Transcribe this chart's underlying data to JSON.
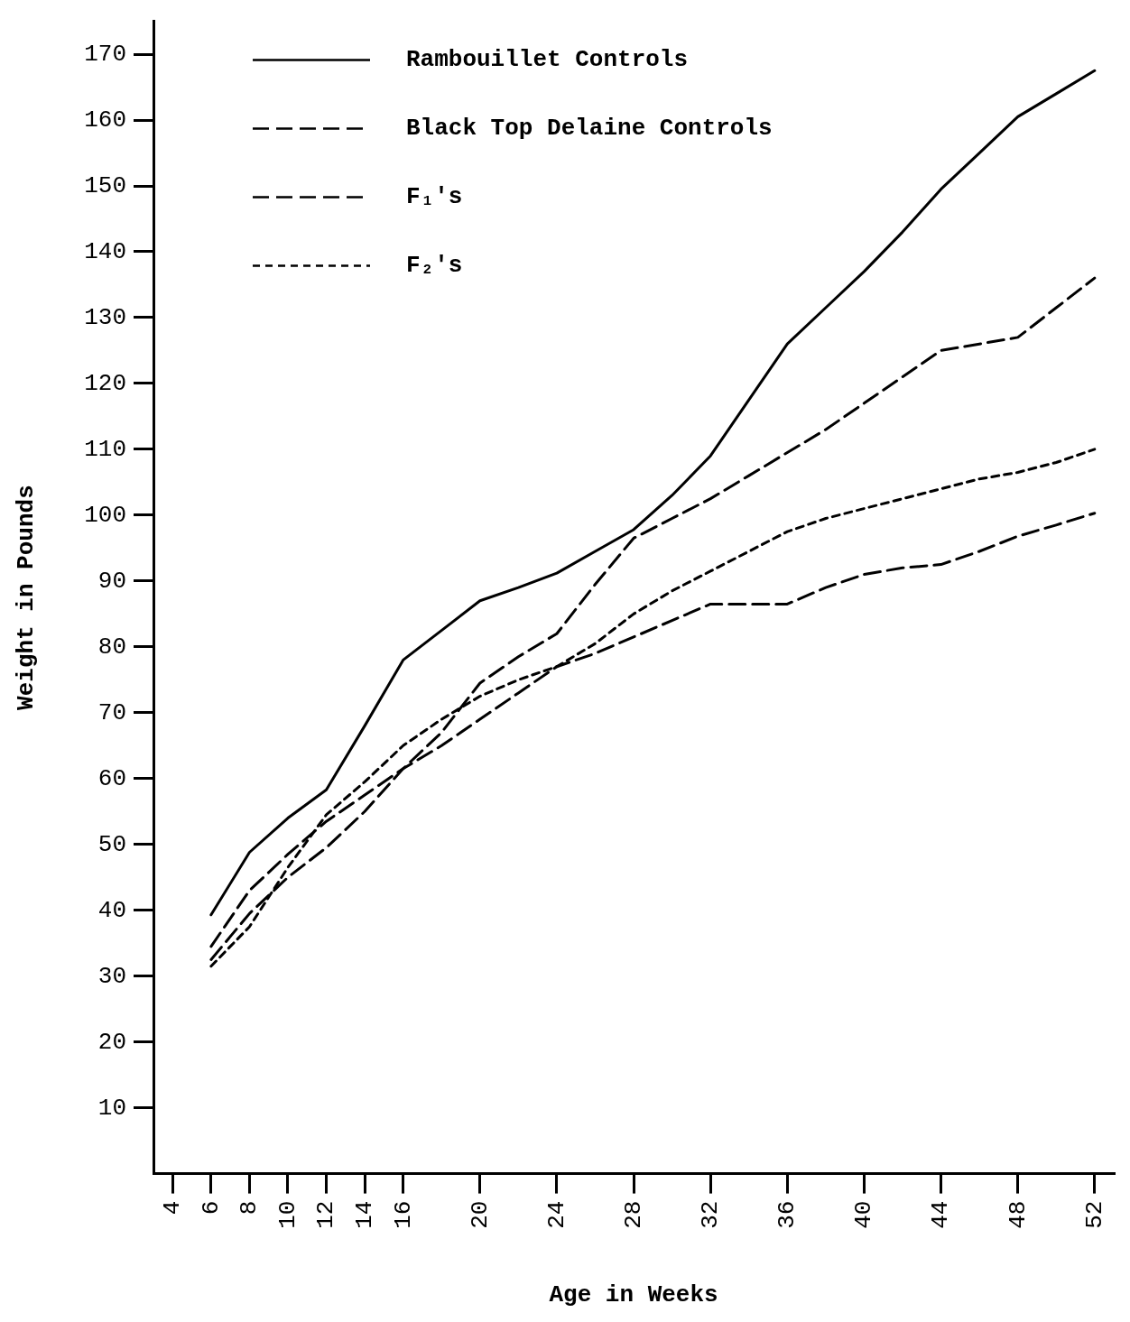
{
  "chart_data": {
    "type": "line",
    "xlabel": "Age in Weeks",
    "ylabel": "Weight in Pounds",
    "categories": [
      "4",
      "6",
      "8",
      "10",
      "12",
      "14",
      "16",
      null,
      "20",
      null,
      "24",
      null,
      "28",
      null,
      "32",
      null,
      "36",
      null,
      "40",
      null,
      "44",
      null,
      "48",
      null,
      "52"
    ],
    "series": [
      {
        "name": "Rambouillet Controls",
        "color": "#000000",
        "line_style": "solid",
        "values": [
          null,
          39.3,
          48.8,
          54,
          58.3,
          68,
          78,
          82.5,
          87,
          89,
          91.2,
          94.5,
          97.8,
          103,
          109,
          117.5,
          126,
          131.5,
          137,
          143,
          149.5,
          155,
          160.5,
          164,
          167.5
        ]
      },
      {
        "name": "Black Top Delaine Controls",
        "color": "#000000",
        "line_style": "dashed",
        "values": [
          null,
          34.5,
          43,
          48.5,
          53.5,
          57.5,
          61.5,
          65,
          69,
          73,
          77,
          79,
          81.5,
          84,
          86.5,
          86.5,
          86.5,
          89,
          91,
          92,
          92.5,
          94.5,
          96.8,
          98.5,
          100.3
        ]
      },
      {
        "name": "F₁'s",
        "color": "#000000",
        "line_style": "dashed",
        "values": [
          null,
          32.5,
          39.5,
          45,
          49.5,
          55,
          61.5,
          67,
          74.5,
          78.5,
          82,
          89.5,
          96.5,
          99.5,
          102.5,
          106,
          109.5,
          113,
          117,
          121,
          125,
          126,
          127,
          131.5,
          136
        ]
      },
      {
        "name": "F₂'s",
        "color": "#000000",
        "line_style": "dotted",
        "values": [
          null,
          31.5,
          37.5,
          46.5,
          54.5,
          59.5,
          65,
          69,
          72.5,
          75,
          77,
          80.5,
          85,
          88.5,
          91.5,
          94.5,
          97.5,
          99.5,
          101,
          102.5,
          104,
          105.5,
          106.5,
          108,
          110
        ]
      }
    ],
    "ylim": [
      0,
      175
    ],
    "yticks": [
      10,
      20,
      30,
      40,
      50,
      60,
      70,
      80,
      90,
      100,
      110,
      120,
      130,
      140,
      150,
      160,
      170
    ],
    "grid": false,
    "legend": "top left",
    "marker": "none"
  }
}
